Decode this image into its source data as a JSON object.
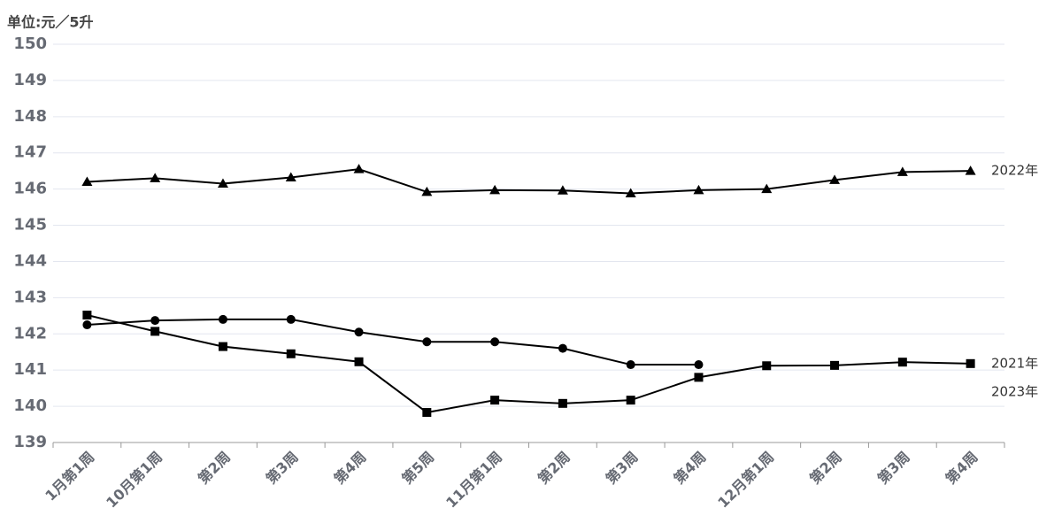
{
  "chart_data": {
    "type": "line",
    "y_axis_label": "单位:元／5升",
    "categories": [
      "1月第1周",
      "10月第1周",
      "第2周",
      "第3周",
      "第4周",
      "第5周",
      "11月第1周",
      "第2周",
      "第3周",
      "第4周",
      "12月第1周",
      "第2周",
      "第3周",
      "第4周"
    ],
    "series": [
      {
        "name": "2022年",
        "color": "#000000",
        "marker": "triangle",
        "values": [
          146.2,
          146.3,
          146.15,
          146.32,
          146.55,
          145.92,
          145.97,
          145.96,
          145.88,
          145.97,
          146.0,
          146.25,
          146.47,
          146.5
        ]
      },
      {
        "name": "2021年",
        "color": "#000000",
        "marker": "square",
        "values": [
          142.52,
          142.07,
          141.65,
          141.45,
          141.23,
          139.83,
          140.17,
          140.08,
          140.17,
          140.8,
          141.12,
          141.13,
          141.22,
          141.18
        ]
      },
      {
        "name": "2023年",
        "color": "#000000",
        "marker": "circle",
        "values": [
          142.25,
          142.37,
          142.4,
          142.4,
          142.05,
          141.78,
          141.78,
          141.6,
          141.15,
          141.15,
          null,
          null,
          null,
          null
        ]
      }
    ],
    "ylim": [
      139,
      150
    ],
    "yticks": [
      139,
      140,
      141,
      142,
      143,
      144,
      145,
      146,
      147,
      148,
      149,
      150
    ],
    "grid": true
  }
}
